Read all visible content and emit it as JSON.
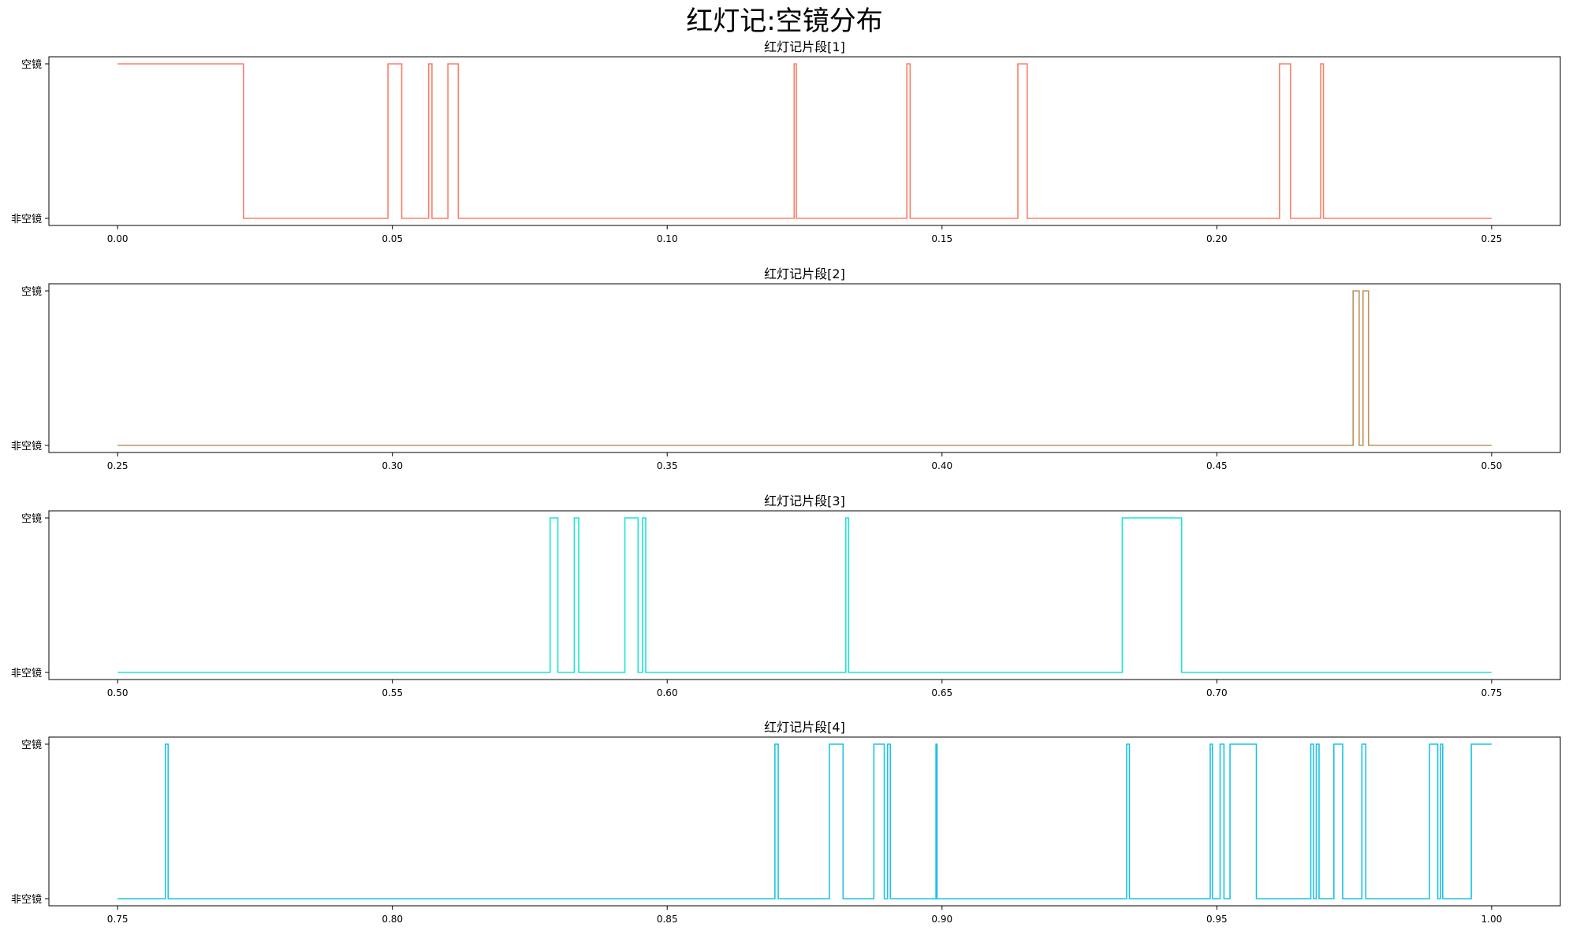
{
  "title": "红灯记:空镜分布",
  "chart_data": [
    {
      "type": "line",
      "step": true,
      "title": "红灯记片段[1]",
      "color": "#fa8068",
      "xlim": [
        -0.0125,
        0.2625
      ],
      "x_ticks": [
        "0.00",
        "0.05",
        "0.10",
        "0.15",
        "0.20",
        "0.25"
      ],
      "x_tick_values": [
        0.0,
        0.05,
        0.1,
        0.15,
        0.2,
        0.25
      ],
      "y_ticks": [
        "非空镜",
        "空镜"
      ],
      "y_tick_values": [
        0,
        1
      ],
      "x_range": [
        0.0,
        0.25
      ],
      "on_intervals": [
        [
          0.0,
          0.0229
        ],
        [
          0.0492,
          0.0517
        ],
        [
          0.0566,
          0.0572
        ],
        [
          0.0601,
          0.062
        ],
        [
          0.1231,
          0.1235
        ],
        [
          0.1436,
          0.1442
        ],
        [
          0.1638,
          0.1655
        ],
        [
          0.2114,
          0.2134
        ],
        [
          0.2189,
          0.2194
        ]
      ]
    },
    {
      "type": "line",
      "step": true,
      "title": "红灯记片段[2]",
      "color": "#bc955a",
      "xlim": [
        0.2375,
        0.5125
      ],
      "x_ticks": [
        "0.25",
        "0.30",
        "0.35",
        "0.40",
        "0.45",
        "0.50"
      ],
      "x_tick_values": [
        0.25,
        0.3,
        0.35,
        0.4,
        0.45,
        0.5
      ],
      "y_ticks": [
        "非空镜",
        "空镜"
      ],
      "y_tick_values": [
        0,
        1
      ],
      "x_range": [
        0.25,
        0.5
      ],
      "on_intervals": [
        [
          0.4748,
          0.4759
        ],
        [
          0.4766,
          0.4776
        ]
      ]
    },
    {
      "type": "line",
      "step": true,
      "title": "红灯记片段[3]",
      "color": "#1ee6d2",
      "xlim": [
        0.4875,
        0.7625
      ],
      "x_ticks": [
        "0.50",
        "0.55",
        "0.60",
        "0.65",
        "0.70",
        "0.75"
      ],
      "x_tick_values": [
        0.5,
        0.55,
        0.6,
        0.65,
        0.7,
        0.75
      ],
      "y_ticks": [
        "非空镜",
        "空镜"
      ],
      "y_tick_values": [
        0,
        1
      ],
      "x_range": [
        0.5,
        0.75
      ],
      "on_intervals": [
        [
          0.5787,
          0.5801
        ],
        [
          0.5831,
          0.5839
        ],
        [
          0.5923,
          0.5947
        ],
        [
          0.5955,
          0.5961
        ],
        [
          0.6325,
          0.633
        ],
        [
          0.6828,
          0.6936
        ]
      ]
    },
    {
      "type": "line",
      "step": true,
      "title": "红灯记片段[4]",
      "color": "#1cc3e6",
      "xlim": [
        0.7375,
        1.0125
      ],
      "x_ticks": [
        "0.75",
        "0.80",
        "0.85",
        "0.90",
        "0.95",
        "1.00"
      ],
      "x_tick_values": [
        0.75,
        0.8,
        0.85,
        0.9,
        0.95,
        1.0
      ],
      "y_ticks": [
        "非空镜",
        "空镜"
      ],
      "y_tick_values": [
        0,
        1
      ],
      "x_range": [
        0.75,
        1.0
      ],
      "on_intervals": [
        [
          0.7587,
          0.7592
        ],
        [
          0.8696,
          0.8702
        ],
        [
          0.8795,
          0.882
        ],
        [
          0.8876,
          0.8895
        ],
        [
          0.8901,
          0.8906
        ],
        [
          0.8989,
          0.8991
        ],
        [
          0.9336,
          0.9341
        ],
        [
          0.9488,
          0.9492
        ],
        [
          0.9506,
          0.9513
        ],
        [
          0.9524,
          0.9572
        ],
        [
          0.9671,
          0.9676
        ],
        [
          0.9681,
          0.9686
        ],
        [
          0.9713,
          0.9729
        ],
        [
          0.9764,
          0.9771
        ],
        [
          0.9887,
          0.9902
        ],
        [
          0.9907,
          0.9911
        ],
        [
          0.9963,
          1.0
        ]
      ]
    }
  ]
}
